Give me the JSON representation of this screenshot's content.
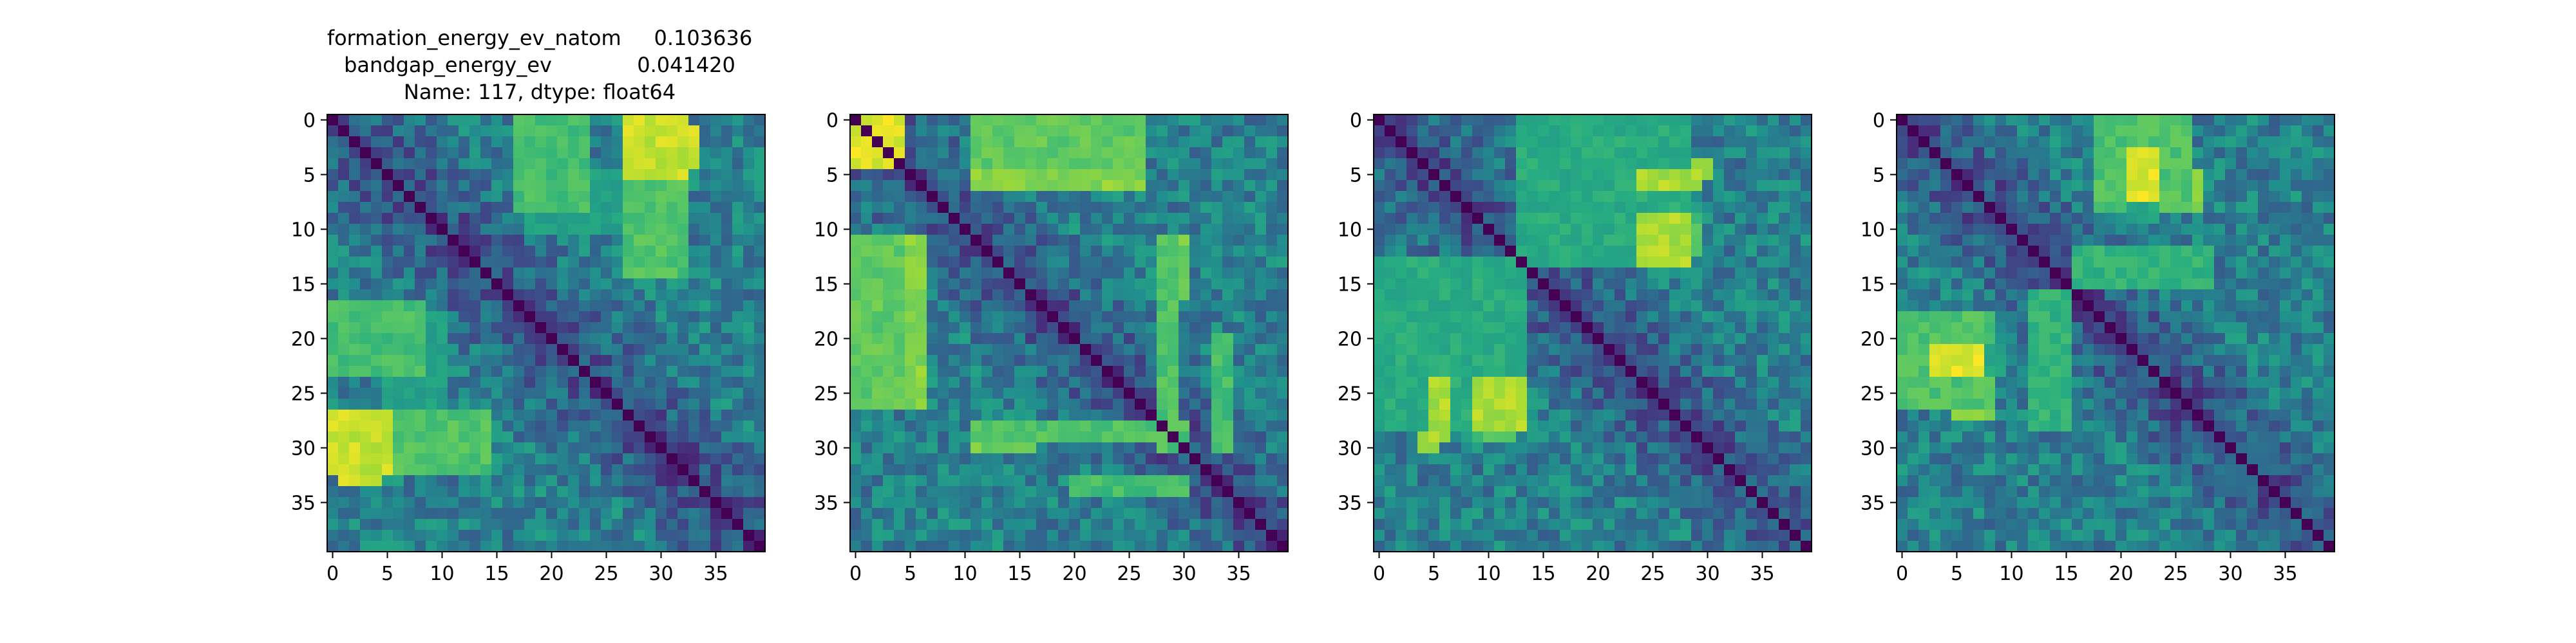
{
  "figure": {
    "title_lines": [
      "formation_energy_ev_natom     0.103636",
      "bandgap_energy_ev             0.041420",
      "Name: 117, dtype: float64"
    ]
  },
  "chart_data": [
    {
      "type": "heatmap",
      "title": "",
      "size": 40,
      "xlim": [
        0,
        39
      ],
      "ylim": [
        0,
        39
      ],
      "x_ticks": [
        0,
        5,
        10,
        15,
        20,
        25,
        30,
        35
      ],
      "y_ticks": [
        0,
        5,
        10,
        15,
        20,
        25,
        30,
        35
      ],
      "colormap": "viridis",
      "value_range": [
        0,
        1
      ],
      "diagonal": 0,
      "seed": 117,
      "hot_blocks": [
        {
          "rows": [
            0,
            4
          ],
          "cols": [
            17,
            23
          ],
          "value": 0.72
        },
        {
          "rows": [
            1,
            4
          ],
          "cols": [
            27,
            33
          ],
          "value": 0.95
        },
        {
          "rows": [
            5,
            10
          ],
          "cols": [
            18,
            31
          ],
          "value": 0.58
        },
        {
          "rows": [
            17,
            23
          ],
          "cols": [
            0,
            8
          ],
          "value": 0.7
        },
        {
          "rows": [
            27,
            32
          ],
          "cols": [
            0,
            6
          ],
          "value": 0.92
        },
        {
          "rows": [
            27,
            32
          ],
          "cols": [
            6,
            14
          ],
          "value": 0.72
        }
      ]
    },
    {
      "type": "heatmap",
      "title": "",
      "size": 40,
      "xlim": [
        0,
        39
      ],
      "ylim": [
        0,
        39
      ],
      "x_ticks": [
        0,
        5,
        10,
        15,
        20,
        25,
        30,
        35
      ],
      "y_ticks": [
        0,
        5,
        10,
        15,
        20,
        25,
        30,
        35
      ],
      "colormap": "viridis",
      "value_range": [
        0,
        1
      ],
      "diagonal": 0,
      "seed": 241,
      "hot_blocks": [
        {
          "rows": [
            0,
            3
          ],
          "cols": [
            0,
            4
          ],
          "value": 0.96
        },
        {
          "rows": [
            0,
            4
          ],
          "cols": [
            11,
            22
          ],
          "value": 0.78
        },
        {
          "rows": [
            2,
            6
          ],
          "cols": [
            11,
            26
          ],
          "value": 0.82
        },
        {
          "rows": [
            11,
            26
          ],
          "cols": [
            0,
            4
          ],
          "value": 0.75
        },
        {
          "rows": [
            11,
            16
          ],
          "cols": [
            28,
            30
          ],
          "value": 0.78
        },
        {
          "rows": [
            28,
            29
          ],
          "cols": [
            11,
            30
          ],
          "value": 0.72
        },
        {
          "rows": [
            33,
            34
          ],
          "cols": [
            20,
            30
          ],
          "value": 0.7
        }
      ]
    },
    {
      "type": "heatmap",
      "title": "",
      "size": 40,
      "xlim": [
        0,
        39
      ],
      "ylim": [
        0,
        39
      ],
      "x_ticks": [
        0,
        5,
        10,
        15,
        20,
        25,
        30,
        35
      ],
      "y_ticks": [
        0,
        5,
        10,
        15,
        20,
        25,
        30,
        35
      ],
      "colormap": "viridis",
      "value_range": [
        0,
        1
      ],
      "diagonal": 0,
      "seed": 373,
      "hot_blocks": [
        {
          "rows": [
            0,
            3
          ],
          "cols": [
            13,
            17
          ],
          "value": 0.8
        },
        {
          "rows": [
            4,
            5
          ],
          "cols": [
            25,
            30
          ],
          "value": 0.88
        },
        {
          "rows": [
            8,
            13
          ],
          "cols": [
            13,
            17
          ],
          "value": 0.62
        },
        {
          "rows": [
            9,
            12
          ],
          "cols": [
            20,
            29
          ],
          "value": 0.72
        },
        {
          "rows": [
            13,
            28
          ],
          "cols": [
            0,
            13
          ],
          "value": 0.62
        },
        {
          "rows": [
            24,
            29
          ],
          "cols": [
            5,
            6
          ],
          "value": 0.88
        },
        {
          "rows": [
            24,
            28
          ],
          "cols": [
            9,
            13
          ],
          "value": 0.88
        }
      ]
    },
    {
      "type": "heatmap",
      "title": "",
      "size": 40,
      "xlim": [
        0,
        39
      ],
      "ylim": [
        0,
        39
      ],
      "x_ticks": [
        0,
        5,
        10,
        15,
        20,
        25,
        30,
        35
      ],
      "y_ticks": [
        0,
        5,
        10,
        15,
        20,
        25,
        30,
        35
      ],
      "colormap": "viridis",
      "value_range": [
        0,
        1
      ],
      "diagonal": 0,
      "seed": 509,
      "hot_blocks": [
        {
          "rows": [
            0,
            2
          ],
          "cols": [
            18,
            26
          ],
          "value": 0.82
        },
        {
          "rows": [
            5,
            8
          ],
          "cols": [
            18,
            27
          ],
          "value": 0.82
        },
        {
          "rows": [
            5,
            7
          ],
          "cols": [
            22,
            23
          ],
          "value": 0.96
        },
        {
          "rows": [
            12,
            15
          ],
          "cols": [
            16,
            28
          ],
          "value": 0.65
        },
        {
          "rows": [
            18,
            26
          ],
          "cols": [
            0,
            8
          ],
          "value": 0.72
        },
        {
          "rows": [
            21,
            23
          ],
          "cols": [
            8,
            9
          ],
          "value": 0.6
        },
        {
          "rows": [
            21,
            23
          ],
          "cols": [
            3,
            7
          ],
          "value": 0.96
        }
      ]
    }
  ]
}
